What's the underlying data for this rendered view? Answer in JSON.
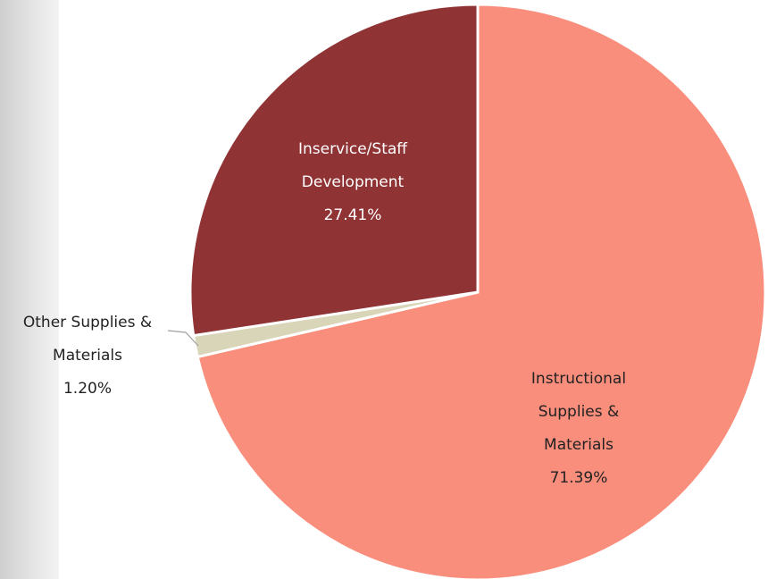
{
  "chart_data": {
    "type": "pie",
    "categories": [
      "Instructional Supplies & Materials",
      "Other Supplies & Materials",
      "Inservice/Staff Development"
    ],
    "values": [
      71.39,
      1.2,
      27.41
    ],
    "value_labels": [
      "71.39%",
      "1.20%",
      "27.41%"
    ],
    "colors": [
      "#fa8e7c",
      "#d9d5b8",
      "#8f3335"
    ]
  }
}
